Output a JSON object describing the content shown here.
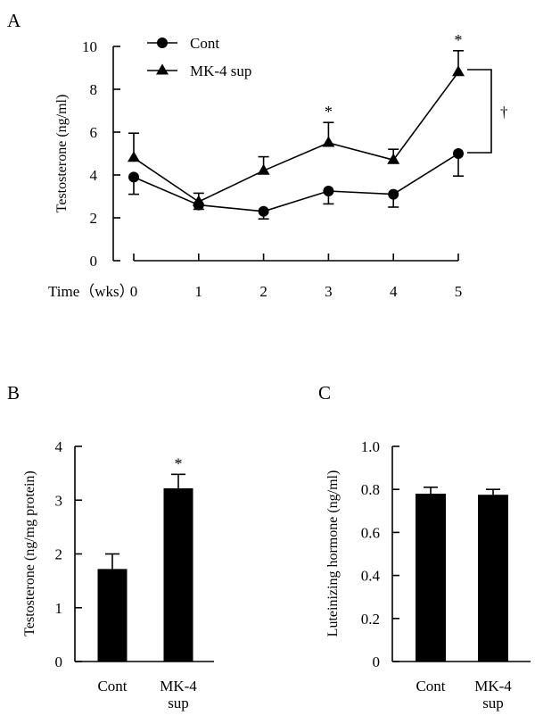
{
  "chart_data": [
    {
      "panel_label": "A",
      "type": "line",
      "xlabel": "Time（wks）",
      "ylabel": "Testosterone (ng/ml)",
      "x": [
        0,
        1,
        2,
        3,
        4,
        5
      ],
      "x_tick_labels": [
        "0",
        "1",
        "2",
        "3",
        "4",
        "5"
      ],
      "ylim": [
        0,
        10
      ],
      "y_ticks": [
        "0",
        "2",
        "4",
        "6",
        "8",
        "10"
      ],
      "legend_position": "top-left",
      "series": [
        {
          "name": "Cont",
          "marker": "circle",
          "values": [
            3.9,
            2.6,
            2.3,
            3.25,
            3.1,
            5.0
          ],
          "error": [
            0.8,
            0.2,
            0.35,
            0.6,
            0.6,
            1.05
          ]
        },
        {
          "name": "MK-4 sup",
          "marker": "triangle",
          "values": [
            4.8,
            2.75,
            4.2,
            5.5,
            4.7,
            8.8
          ],
          "error": [
            1.15,
            0.4,
            0.65,
            0.95,
            0.5,
            1.0
          ]
        }
      ],
      "significance_marks": [
        {
          "x": 3,
          "label": "*"
        },
        {
          "x": 5,
          "label": "*"
        }
      ],
      "bracket_label": "†"
    },
    {
      "panel_label": "B",
      "type": "bar",
      "ylabel": "Testosterone (ng/mg protein)",
      "categories": [
        [
          "Cont"
        ],
        [
          "MK-4",
          "sup"
        ]
      ],
      "values": [
        1.72,
        3.22
      ],
      "error": [
        0.28,
        0.26
      ],
      "ylim": [
        0,
        4
      ],
      "y_ticks": [
        "0",
        "1",
        "2",
        "3",
        "4"
      ],
      "significance_marks": [
        "",
        "*"
      ]
    },
    {
      "panel_label": "C",
      "type": "bar",
      "ylabel": "Luteinizing hormone (ng/ml)",
      "categories": [
        [
          "Cont"
        ],
        [
          "MK-4",
          "sup"
        ]
      ],
      "values": [
        0.78,
        0.775
      ],
      "error": [
        0.03,
        0.025
      ],
      "ylim": [
        0,
        1
      ],
      "y_ticks": [
        "0",
        "0.2",
        "0.4",
        "0.6",
        "0.8",
        "1.0"
      ],
      "significance_marks": [
        "",
        ""
      ]
    }
  ]
}
